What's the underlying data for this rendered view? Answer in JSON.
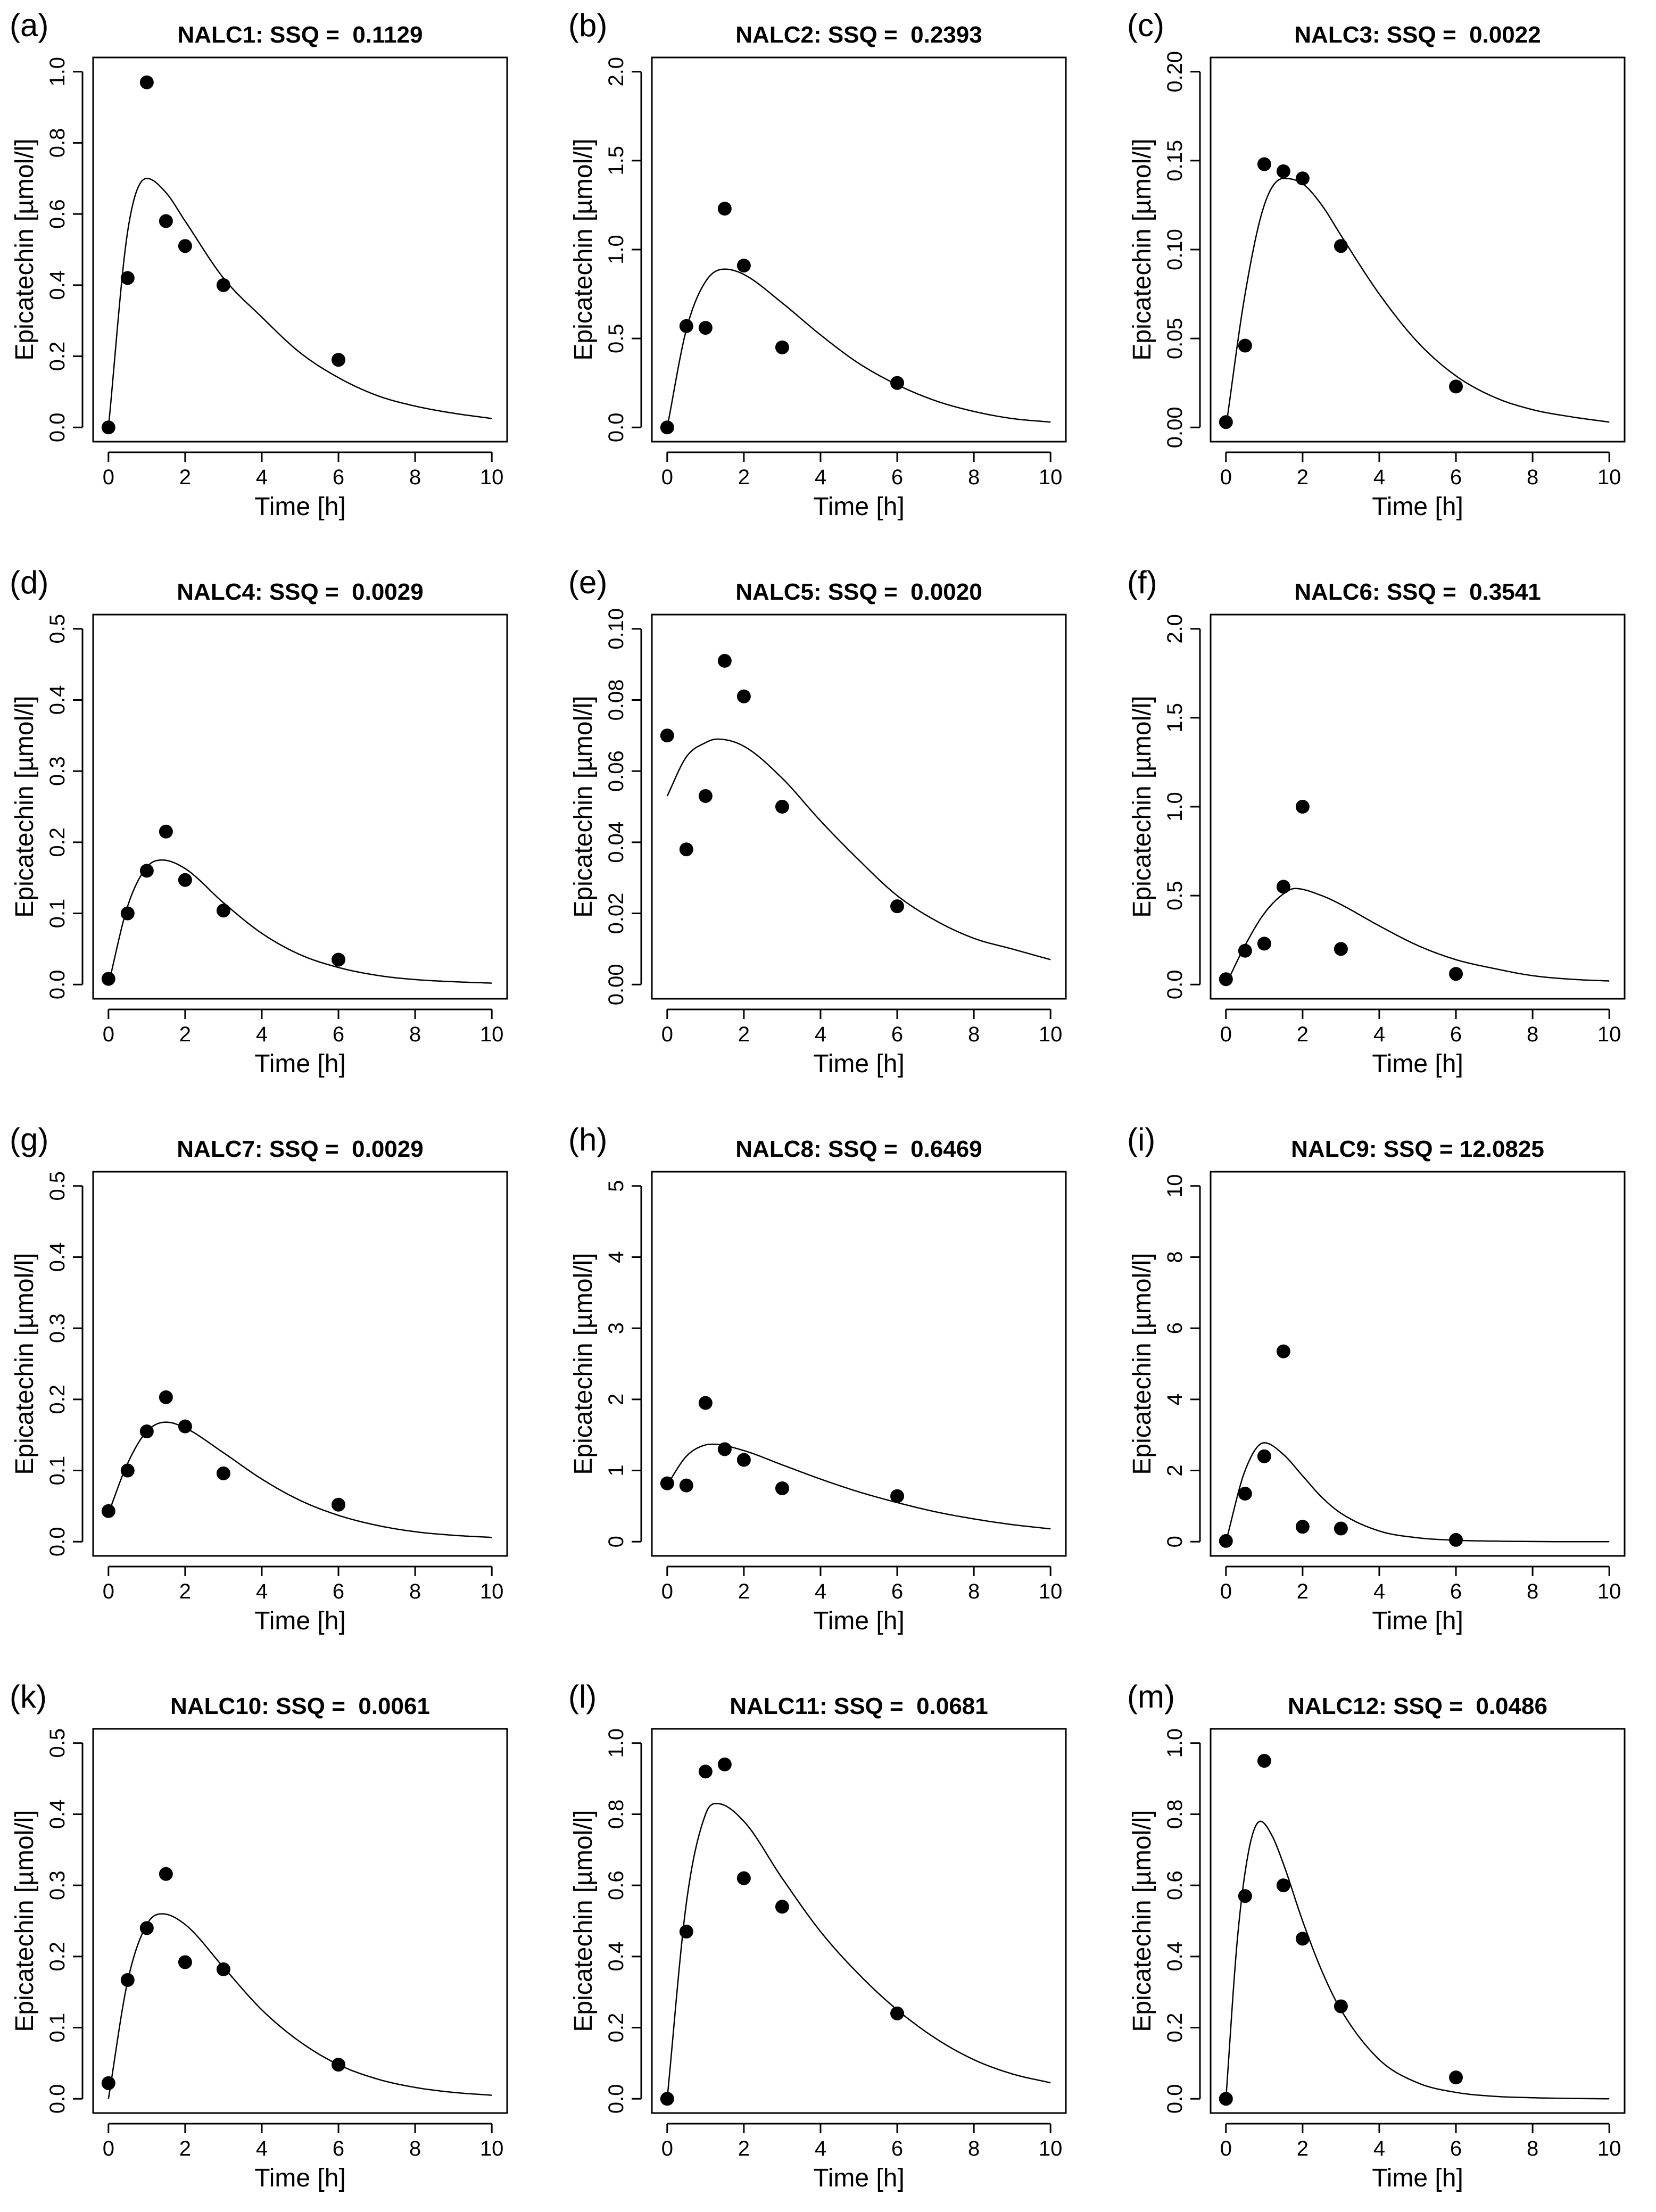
{
  "chart_data": [
    {
      "type": "scatter",
      "panel": "(a)",
      "title": "NALC1: SSQ =  0.1129",
      "xlabel": "Time [h]",
      "ylabel": "Epicatechin [µmol/l]",
      "xlim": [
        0,
        10
      ],
      "ylim": [
        0,
        1.0
      ],
      "xticks": [
        0,
        2,
        4,
        6,
        8,
        10
      ],
      "xtick_labels": [
        "0",
        "2",
        "4",
        "6",
        "8",
        "10"
      ],
      "yticks": [
        0,
        0.2,
        0.4,
        0.6,
        0.8,
        1.0
      ],
      "ytick_labels": [
        "0.0",
        "0.2",
        "0.4",
        "0.6",
        "0.8",
        "1.0"
      ],
      "points": {
        "x": [
          0,
          0.5,
          1,
          1.5,
          2,
          3,
          6
        ],
        "y": [
          0.0,
          0.42,
          0.97,
          0.58,
          0.51,
          0.4,
          0.19
        ]
      },
      "fit": {
        "name": "model fit",
        "peak_value": 0.7,
        "peak_time": 1.0,
        "x": [
          0,
          0.5,
          1,
          1.5,
          2,
          3,
          4,
          5,
          6,
          7,
          8,
          9,
          10
        ],
        "y": [
          0.0,
          0.55,
          0.7,
          0.66,
          0.58,
          0.42,
          0.31,
          0.21,
          0.14,
          0.09,
          0.06,
          0.04,
          0.025
        ]
      }
    },
    {
      "type": "scatter",
      "panel": "(b)",
      "title": "NALC2: SSQ =  0.2393",
      "xlabel": "Time [h]",
      "ylabel": "Epicatechin [µmol/l]",
      "xlim": [
        0,
        10
      ],
      "ylim": [
        0,
        2.0
      ],
      "xticks": [
        0,
        2,
        4,
        6,
        8,
        10
      ],
      "xtick_labels": [
        "0",
        "2",
        "4",
        "6",
        "8",
        "10"
      ],
      "yticks": [
        0,
        0.5,
        1.0,
        1.5,
        2.0
      ],
      "ytick_labels": [
        "0.0",
        "0.5",
        "1.0",
        "1.5",
        "2.0"
      ],
      "points": {
        "x": [
          0,
          0.5,
          1,
          1.5,
          2,
          3,
          6
        ],
        "y": [
          0.0,
          0.57,
          0.56,
          1.23,
          0.91,
          0.45,
          0.25
        ]
      },
      "fit": {
        "name": "model fit",
        "peak_value": 0.89,
        "peak_time": 1.5,
        "x": [
          0,
          0.5,
          1,
          1.5,
          2,
          3,
          4,
          5,
          6,
          7,
          8,
          9,
          10
        ],
        "y": [
          0.0,
          0.55,
          0.82,
          0.89,
          0.86,
          0.7,
          0.52,
          0.36,
          0.24,
          0.15,
          0.09,
          0.05,
          0.03
        ]
      }
    },
    {
      "type": "scatter",
      "panel": "(c)",
      "title": "NALC3: SSQ =  0.0022",
      "xlabel": "Time [h]",
      "ylabel": "Epicatechin [µmol/l]",
      "xlim": [
        0,
        10
      ],
      "ylim": [
        0,
        0.2
      ],
      "xticks": [
        0,
        2,
        4,
        6,
        8,
        10
      ],
      "xtick_labels": [
        "0",
        "2",
        "4",
        "6",
        "8",
        "10"
      ],
      "yticks": [
        0,
        0.05,
        0.1,
        0.15,
        0.2
      ],
      "ytick_labels": [
        "0.00",
        "0.05",
        "0.10",
        "0.15",
        "0.20"
      ],
      "points": {
        "x": [
          0,
          0.5,
          1,
          1.5,
          2,
          3,
          6
        ],
        "y": [
          0.003,
          0.046,
          0.148,
          0.144,
          0.14,
          0.102,
          0.023
        ]
      },
      "fit": {
        "name": "model fit",
        "peak_value": 0.14,
        "peak_time": 1.5,
        "x": [
          0,
          0.5,
          1,
          1.5,
          2,
          2.5,
          3,
          4,
          5,
          6,
          7,
          8,
          9,
          10
        ],
        "y": [
          0.0,
          0.075,
          0.125,
          0.14,
          0.137,
          0.125,
          0.108,
          0.075,
          0.048,
          0.029,
          0.017,
          0.01,
          0.006,
          0.003
        ]
      }
    },
    {
      "type": "scatter",
      "panel": "(d)",
      "title": "NALC4: SSQ =  0.0029",
      "xlabel": "Time [h]",
      "ylabel": "Epicatechin [µmol/l]",
      "xlim": [
        0,
        10
      ],
      "ylim": [
        0,
        0.5
      ],
      "xticks": [
        0,
        2,
        4,
        6,
        8,
        10
      ],
      "xtick_labels": [
        "0",
        "2",
        "4",
        "6",
        "8",
        "10"
      ],
      "yticks": [
        0,
        0.1,
        0.2,
        0.3,
        0.4,
        0.5
      ],
      "ytick_labels": [
        "0.0",
        "0.1",
        "0.2",
        "0.3",
        "0.4",
        "0.5"
      ],
      "points": {
        "x": [
          0,
          0.5,
          1,
          1.5,
          2,
          3,
          6
        ],
        "y": [
          0.008,
          0.1,
          0.16,
          0.215,
          0.147,
          0.104,
          0.035
        ]
      },
      "fit": {
        "name": "model fit",
        "peak_value": 0.175,
        "peak_time": 1.4,
        "x": [
          0,
          0.5,
          1,
          1.4,
          2,
          3,
          4,
          5,
          6,
          7,
          8,
          9,
          10
        ],
        "y": [
          0.0,
          0.11,
          0.165,
          0.175,
          0.163,
          0.115,
          0.072,
          0.042,
          0.024,
          0.013,
          0.007,
          0.004,
          0.002
        ]
      }
    },
    {
      "type": "scatter",
      "panel": "(e)",
      "title": "NALC5: SSQ =  0.0020",
      "xlabel": "Time [h]",
      "ylabel": "Epicatechin [µmol/l]",
      "xlim": [
        0,
        10
      ],
      "ylim": [
        0,
        0.1
      ],
      "xticks": [
        0,
        2,
        4,
        6,
        8,
        10
      ],
      "xtick_labels": [
        "0",
        "2",
        "4",
        "6",
        "8",
        "10"
      ],
      "yticks": [
        0,
        0.02,
        0.04,
        0.06,
        0.08,
        0.1
      ],
      "ytick_labels": [
        "0.00",
        "0.02",
        "0.04",
        "0.06",
        "0.08",
        "0.10"
      ],
      "points": {
        "x": [
          0,
          0.5,
          1,
          1.5,
          2,
          3,
          6
        ],
        "y": [
          0.07,
          0.038,
          0.053,
          0.091,
          0.081,
          0.05,
          0.022
        ]
      },
      "fit": {
        "name": "model fit",
        "peak_value": 0.069,
        "peak_time": 1.3,
        "x": [
          0,
          0.5,
          1,
          1.3,
          2,
          3,
          4,
          5,
          6,
          7,
          8,
          9,
          10
        ],
        "y": [
          0.053,
          0.064,
          0.068,
          0.069,
          0.067,
          0.058,
          0.046,
          0.035,
          0.025,
          0.018,
          0.013,
          0.01,
          0.007
        ]
      }
    },
    {
      "type": "scatter",
      "panel": "(f)",
      "title": "NALC6: SSQ =  0.3541",
      "xlabel": "Time [h]",
      "ylabel": "Epicatechin [µmol/l]",
      "xlim": [
        0,
        10
      ],
      "ylim": [
        0,
        2.0
      ],
      "xticks": [
        0,
        2,
        4,
        6,
        8,
        10
      ],
      "xtick_labels": [
        "0",
        "2",
        "4",
        "6",
        "8",
        "10"
      ],
      "yticks": [
        0,
        0.5,
        1.0,
        1.5,
        2.0
      ],
      "ytick_labels": [
        "0.0",
        "0.5",
        "1.0",
        "1.5",
        "2.0"
      ],
      "points": {
        "x": [
          0,
          0.5,
          1,
          1.5,
          2,
          3,
          6
        ],
        "y": [
          0.03,
          0.19,
          0.23,
          0.55,
          1.0,
          0.2,
          0.06
        ]
      },
      "fit": {
        "name": "model fit",
        "peak_value": 0.54,
        "peak_time": 1.8,
        "x": [
          0,
          0.5,
          1,
          1.5,
          1.8,
          2.5,
          3,
          4,
          5,
          6,
          7,
          8,
          9,
          10
        ],
        "y": [
          0.0,
          0.22,
          0.4,
          0.51,
          0.54,
          0.5,
          0.45,
          0.33,
          0.22,
          0.14,
          0.09,
          0.05,
          0.03,
          0.02
        ]
      }
    },
    {
      "type": "scatter",
      "panel": "(g)",
      "title": "NALC7: SSQ =  0.0029",
      "xlabel": "Time [h]",
      "ylabel": "Epicatechin [µmol/l]",
      "xlim": [
        0,
        10
      ],
      "ylim": [
        0,
        0.5
      ],
      "xticks": [
        0,
        2,
        4,
        6,
        8,
        10
      ],
      "xtick_labels": [
        "0",
        "2",
        "4",
        "6",
        "8",
        "10"
      ],
      "yticks": [
        0,
        0.1,
        0.2,
        0.3,
        0.4,
        0.5
      ],
      "ytick_labels": [
        "0.0",
        "0.1",
        "0.2",
        "0.3",
        "0.4",
        "0.5"
      ],
      "points": {
        "x": [
          0,
          0.5,
          1,
          1.5,
          2,
          3,
          6
        ],
        "y": [
          0.043,
          0.1,
          0.155,
          0.203,
          0.162,
          0.096,
          0.052
        ]
      },
      "fit": {
        "name": "model fit",
        "peak_value": 0.168,
        "peak_time": 1.5,
        "x": [
          0,
          0.5,
          1,
          1.5,
          2,
          3,
          4,
          5,
          6,
          7,
          8,
          9,
          10
        ],
        "y": [
          0.04,
          0.11,
          0.155,
          0.168,
          0.16,
          0.125,
          0.088,
          0.058,
          0.037,
          0.023,
          0.014,
          0.009,
          0.006
        ]
      }
    },
    {
      "type": "scatter",
      "panel": "(h)",
      "title": "NALC8: SSQ =  0.6469",
      "xlabel": "Time [h]",
      "ylabel": "Epicatechin [µmol/l]",
      "xlim": [
        0,
        10
      ],
      "ylim": [
        0,
        5
      ],
      "xticks": [
        0,
        2,
        4,
        6,
        8,
        10
      ],
      "xtick_labels": [
        "0",
        "2",
        "4",
        "6",
        "8",
        "10"
      ],
      "yticks": [
        0,
        1,
        2,
        3,
        4,
        5
      ],
      "ytick_labels": [
        "0",
        "1",
        "2",
        "3",
        "4",
        "5"
      ],
      "points": {
        "x": [
          0,
          0.5,
          1,
          1.5,
          2,
          3,
          6
        ],
        "y": [
          0.82,
          0.79,
          1.95,
          1.3,
          1.15,
          0.75,
          0.64
        ]
      },
      "fit": {
        "name": "model fit",
        "peak_value": 1.37,
        "peak_time": 1.2,
        "x": [
          0,
          0.5,
          1,
          1.2,
          2,
          3,
          4,
          5,
          6,
          7,
          8,
          9,
          10
        ],
        "y": [
          0.8,
          1.2,
          1.36,
          1.37,
          1.28,
          1.08,
          0.88,
          0.7,
          0.55,
          0.42,
          0.32,
          0.24,
          0.18
        ]
      }
    },
    {
      "type": "scatter",
      "panel": "(i)",
      "title": "NALC9: SSQ = 12.0825",
      "xlabel": "Time [h]",
      "ylabel": "Epicatechin [µmol/l]",
      "xlim": [
        0,
        10
      ],
      "ylim": [
        0,
        10
      ],
      "xticks": [
        0,
        2,
        4,
        6,
        8,
        10
      ],
      "xtick_labels": [
        "0",
        "2",
        "4",
        "6",
        "8",
        "10"
      ],
      "yticks": [
        0,
        2,
        4,
        6,
        8,
        10
      ],
      "ytick_labels": [
        "0",
        "2",
        "4",
        "6",
        "8",
        "10"
      ],
      "points": {
        "x": [
          0,
          0.5,
          1,
          1.5,
          2,
          3,
          6
        ],
        "y": [
          0.02,
          1.35,
          2.4,
          5.35,
          0.42,
          0.37,
          0.05
        ]
      },
      "fit": {
        "name": "model fit",
        "peak_value": 2.78,
        "peak_time": 1.0,
        "x": [
          0,
          0.5,
          1,
          1.5,
          2,
          2.5,
          3,
          4,
          5,
          6,
          7,
          8,
          9,
          10
        ],
        "y": [
          0.0,
          2.0,
          2.78,
          2.45,
          1.85,
          1.25,
          0.8,
          0.3,
          0.11,
          0.04,
          0.015,
          0.005,
          0.0,
          0.0
        ]
      }
    },
    {
      "type": "scatter",
      "panel": "(k)",
      "title": "NALC10: SSQ =  0.0061",
      "xlabel": "Time [h]",
      "ylabel": "Epicatechin [µmol/l]",
      "xlim": [
        0,
        10
      ],
      "ylim": [
        0,
        0.5
      ],
      "xticks": [
        0,
        2,
        4,
        6,
        8,
        10
      ],
      "xtick_labels": [
        "0",
        "2",
        "4",
        "6",
        "8",
        "10"
      ],
      "yticks": [
        0,
        0.1,
        0.2,
        0.3,
        0.4,
        0.5
      ],
      "ytick_labels": [
        "0.0",
        "0.1",
        "0.2",
        "0.3",
        "0.4",
        "0.5"
      ],
      "points": {
        "x": [
          0,
          0.5,
          1,
          1.5,
          2,
          3,
          6
        ],
        "y": [
          0.022,
          0.167,
          0.24,
          0.316,
          0.192,
          0.182,
          0.048
        ]
      },
      "fit": {
        "name": "model fit",
        "peak_value": 0.26,
        "peak_time": 1.4,
        "x": [
          0,
          0.5,
          1,
          1.4,
          2,
          3,
          4,
          5,
          6,
          7,
          8,
          9,
          10
        ],
        "y": [
          0.0,
          0.165,
          0.245,
          0.26,
          0.245,
          0.185,
          0.125,
          0.08,
          0.048,
          0.028,
          0.016,
          0.009,
          0.005
        ]
      }
    },
    {
      "type": "scatter",
      "panel": "(l)",
      "title": "NALC11: SSQ =  0.0681",
      "xlabel": "Time [h]",
      "ylabel": "Epicatechin [µmol/l]",
      "xlim": [
        0,
        10
      ],
      "ylim": [
        0,
        1.0
      ],
      "xticks": [
        0,
        2,
        4,
        6,
        8,
        10
      ],
      "xtick_labels": [
        "0",
        "2",
        "4",
        "6",
        "8",
        "10"
      ],
      "yticks": [
        0,
        0.2,
        0.4,
        0.6,
        0.8,
        1.0
      ],
      "ytick_labels": [
        "0.0",
        "0.2",
        "0.4",
        "0.6",
        "0.8",
        "1.0"
      ],
      "points": {
        "x": [
          0,
          0.5,
          1,
          1.5,
          2,
          3,
          6
        ],
        "y": [
          0.0,
          0.47,
          0.92,
          0.94,
          0.62,
          0.54,
          0.24
        ]
      },
      "fit": {
        "name": "model fit",
        "peak_value": 0.83,
        "peak_time": 1.3,
        "x": [
          0,
          0.5,
          1,
          1.3,
          2,
          3,
          4,
          5,
          6,
          7,
          8,
          9,
          10
        ],
        "y": [
          0.0,
          0.55,
          0.8,
          0.83,
          0.78,
          0.62,
          0.47,
          0.35,
          0.25,
          0.17,
          0.11,
          0.07,
          0.045
        ]
      }
    },
    {
      "type": "scatter",
      "panel": "(m)",
      "title": "NALC12: SSQ =  0.0486",
      "xlabel": "Time [h]",
      "ylabel": "Epicatechin [µmol/l]",
      "xlim": [
        0,
        10
      ],
      "ylim": [
        0,
        1.0
      ],
      "xticks": [
        0,
        2,
        4,
        6,
        8,
        10
      ],
      "xtick_labels": [
        "0",
        "2",
        "4",
        "6",
        "8",
        "10"
      ],
      "yticks": [
        0,
        0.2,
        0.4,
        0.6,
        0.8,
        1.0
      ],
      "ytick_labels": [
        "0.0",
        "0.2",
        "0.4",
        "0.6",
        "0.8",
        "1.0"
      ],
      "points": {
        "x": [
          0,
          0.5,
          1,
          1.5,
          2,
          3,
          6
        ],
        "y": [
          0.0,
          0.57,
          0.95,
          0.6,
          0.45,
          0.26,
          0.06
        ]
      },
      "fit": {
        "name": "model fit",
        "peak_value": 0.78,
        "peak_time": 0.9,
        "x": [
          0,
          0.3,
          0.6,
          0.9,
          1.2,
          1.5,
          2,
          2.5,
          3,
          4,
          5,
          6,
          7,
          8,
          9,
          10
        ],
        "y": [
          0.0,
          0.45,
          0.7,
          0.78,
          0.74,
          0.66,
          0.5,
          0.36,
          0.25,
          0.11,
          0.045,
          0.018,
          0.007,
          0.003,
          0.001,
          0.0
        ]
      }
    }
  ]
}
